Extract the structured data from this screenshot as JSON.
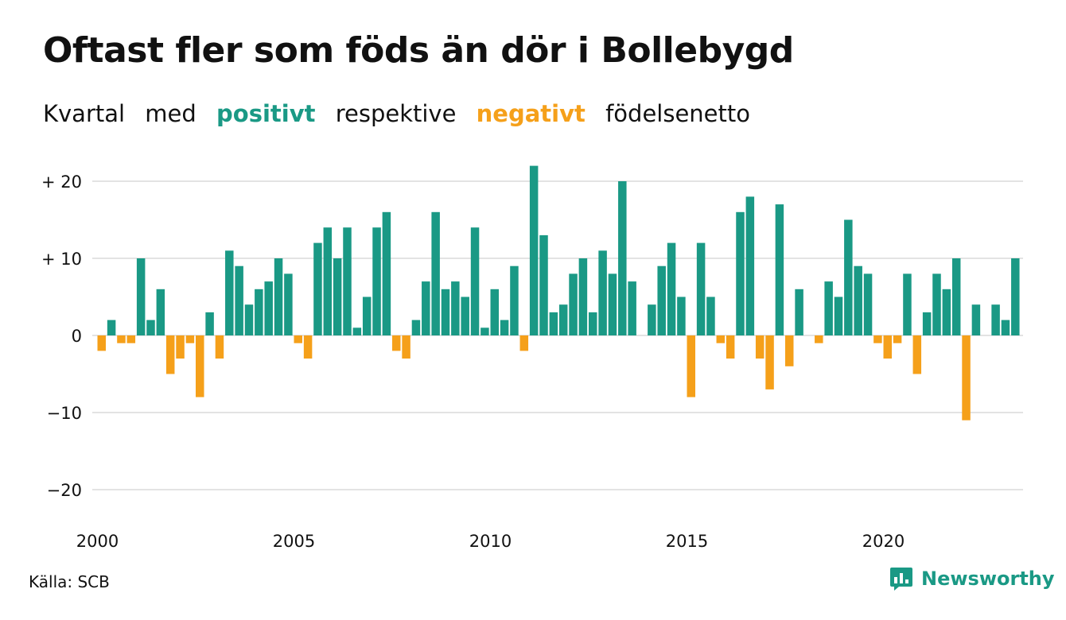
{
  "title": "Oftast fler som föds än dör i Bollebygd",
  "subtitle": {
    "w1": "Kvartal",
    "w2": "med",
    "positive": "positivt",
    "w3": "respektive",
    "negative": "negativt",
    "w4": "födelsenetto"
  },
  "colors": {
    "positive": "#1a9985",
    "negative": "#f5a01a",
    "grid": "#e3e3e3",
    "text": "#111111"
  },
  "source": "Källa: SCB",
  "logo": {
    "text": "Newsworthy",
    "icon": "bar-chart-speech-icon"
  },
  "chart_data": {
    "type": "bar",
    "title": "Oftast fler som föds än dör i Bollebygd",
    "x_start_year": 2000,
    "period": "quarter",
    "ylim": [
      -23,
      23
    ],
    "yticks": [
      20,
      10,
      0,
      -10,
      -20
    ],
    "ytick_labels": [
      "+ 20",
      "+ 10",
      "0",
      "−10",
      "−20"
    ],
    "xtick_labels": [
      "2000",
      "2005",
      "2010",
      "2015",
      "2020"
    ],
    "grid": true,
    "values": [
      -2,
      2,
      -1,
      -1,
      10,
      2,
      6,
      -5,
      -3,
      -1,
      -8,
      3,
      -3,
      11,
      9,
      4,
      6,
      7,
      10,
      8,
      -1,
      -3,
      12,
      14,
      10,
      14,
      1,
      5,
      14,
      16,
      -2,
      -3,
      2,
      7,
      16,
      6,
      7,
      5,
      14,
      1,
      6,
      2,
      9,
      -2,
      22,
      13,
      3,
      4,
      8,
      10,
      3,
      11,
      8,
      20,
      7,
      0,
      4,
      9,
      12,
      5,
      -8,
      12,
      5,
      -1,
      -3,
      16,
      18,
      -3,
      -7,
      17,
      -4,
      6,
      0,
      -1,
      7,
      5,
      15,
      9,
      8,
      -1,
      -3,
      -1,
      8,
      -5,
      3,
      8,
      6,
      10,
      -11,
      4,
      0,
      4,
      2,
      10
    ]
  }
}
